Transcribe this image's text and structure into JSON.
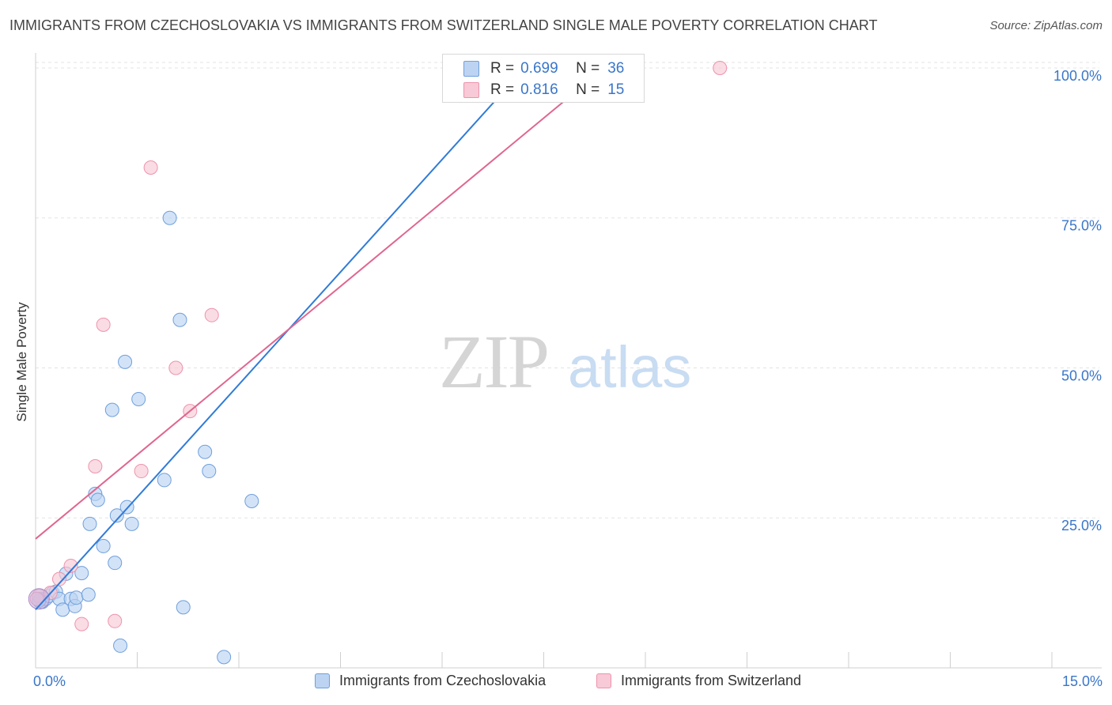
{
  "title": "IMMIGRANTS FROM CZECHOSLOVAKIA VS IMMIGRANTS FROM SWITZERLAND SINGLE MALE POVERTY CORRELATION CHART",
  "source": "Source: ZipAtlas.com",
  "watermark": {
    "zip": "ZIP",
    "atlas": "atlas"
  },
  "stats": [
    {
      "r_label": "R =",
      "r_value": "0.699",
      "n_label": "N =",
      "n_value": "36",
      "color": "#9bbfea"
    },
    {
      "r_label": "R =",
      "r_value": "0.816",
      "n_label": "N =",
      "n_value": "15",
      "color": "#f4b6c8"
    }
  ],
  "chart_data": {
    "type": "scatter",
    "title": "IMMIGRANTS FROM CZECHOSLOVAKIA VS IMMIGRANTS FROM SWITZERLAND SINGLE MALE POVERTY CORRELATION CHART",
    "xlabel": "",
    "ylabel": "Single Male Poverty",
    "xlim": [
      0,
      15
    ],
    "ylim": [
      0,
      102.5
    ],
    "x_tick_labels": [
      "0.0%",
      "15.0%"
    ],
    "y_ticks": [
      25,
      50,
      75,
      100
    ],
    "y_tick_labels": [
      "25.0%",
      "50.0%",
      "75.0%",
      "100.0%"
    ],
    "grid": true,
    "legend_position": "bottom",
    "series": [
      {
        "name": "Immigrants from Czechoslovakia",
        "color": "#6f9fdc",
        "fill": "#bcd4f2",
        "line_color": "#2f7bd8",
        "points": [
          {
            "x": 0.08,
            "y": 11.5
          },
          {
            "x": 0.1,
            "y": 11.0
          },
          {
            "x": 0.15,
            "y": 11.5
          },
          {
            "x": 0.2,
            "y": 12.0
          },
          {
            "x": 0.25,
            "y": 12.5
          },
          {
            "x": 0.3,
            "y": 12.7
          },
          {
            "x": 0.35,
            "y": 11.5
          },
          {
            "x": 0.4,
            "y": 9.7
          },
          {
            "x": 0.45,
            "y": 15.7
          },
          {
            "x": 0.52,
            "y": 11.5
          },
          {
            "x": 0.58,
            "y": 10.3
          },
          {
            "x": 0.6,
            "y": 11.7
          },
          {
            "x": 0.68,
            "y": 15.8
          },
          {
            "x": 0.78,
            "y": 12.2
          },
          {
            "x": 0.8,
            "y": 24.0
          },
          {
            "x": 0.88,
            "y": 29.0
          },
          {
            "x": 0.92,
            "y": 28.0
          },
          {
            "x": 1.0,
            "y": 20.3
          },
          {
            "x": 1.13,
            "y": 43.0
          },
          {
            "x": 1.17,
            "y": 17.5
          },
          {
            "x": 1.2,
            "y": 25.4
          },
          {
            "x": 1.25,
            "y": 3.7
          },
          {
            "x": 1.32,
            "y": 51.0
          },
          {
            "x": 1.35,
            "y": 26.8
          },
          {
            "x": 1.42,
            "y": 24.0
          },
          {
            "x": 1.52,
            "y": 44.8
          },
          {
            "x": 1.9,
            "y": 31.3
          },
          {
            "x": 1.98,
            "y": 75.0
          },
          {
            "x": 2.13,
            "y": 58.0
          },
          {
            "x": 2.18,
            "y": 10.1
          },
          {
            "x": 2.5,
            "y": 36.0
          },
          {
            "x": 2.56,
            "y": 32.8
          },
          {
            "x": 2.78,
            "y": 1.8
          },
          {
            "x": 3.19,
            "y": 27.8
          },
          {
            "x": 6.4,
            "y": 100.0
          },
          {
            "x": 0.05,
            "y": 11.2
          }
        ],
        "trend": {
          "x0": 0.0,
          "y0": 9.7,
          "x1": 7.3,
          "y1": 101.0
        }
      },
      {
        "name": "Immigrants from Switzerland",
        "color": "#ee93ad",
        "fill": "#f8c9d6",
        "line_color": "#e0668f",
        "points": [
          {
            "x": 0.05,
            "y": 12.0
          },
          {
            "x": 0.22,
            "y": 12.5
          },
          {
            "x": 0.35,
            "y": 14.8
          },
          {
            "x": 0.52,
            "y": 17.0
          },
          {
            "x": 0.68,
            "y": 7.3
          },
          {
            "x": 0.88,
            "y": 33.6
          },
          {
            "x": 1.0,
            "y": 57.2
          },
          {
            "x": 1.17,
            "y": 7.8
          },
          {
            "x": 1.56,
            "y": 32.8
          },
          {
            "x": 1.7,
            "y": 83.4
          },
          {
            "x": 2.07,
            "y": 50.0
          },
          {
            "x": 2.28,
            "y": 42.8
          },
          {
            "x": 2.6,
            "y": 58.8
          },
          {
            "x": 10.1,
            "y": 100.0
          },
          {
            "x": 0.02,
            "y": 11.5
          }
        ],
        "trend": {
          "x0": 0.0,
          "y0": 21.5,
          "x1": 8.5,
          "y1": 101.0
        }
      }
    ]
  }
}
